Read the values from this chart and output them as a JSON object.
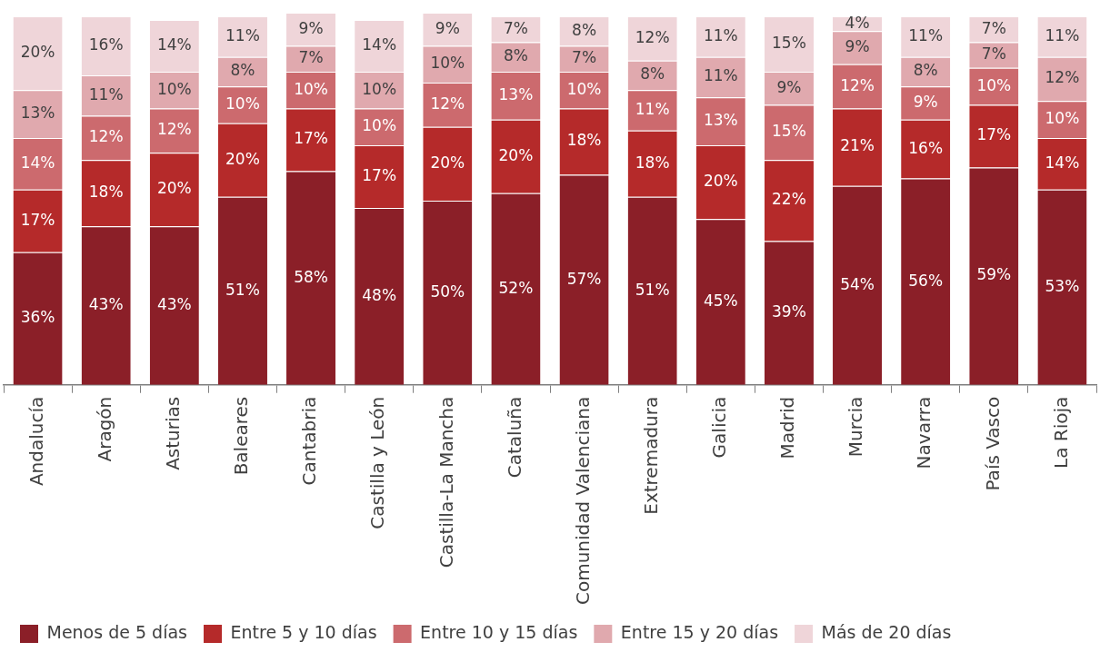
{
  "chart_data": {
    "type": "bar",
    "stacked": true,
    "legend": "bottom",
    "grid": false,
    "categories": [
      "Andalucía",
      "Aragón",
      "Asturias",
      "Baleares",
      "Cantabria",
      "Castilla y León",
      "Castilla-La Mancha",
      "Cataluña",
      "Comunidad Valenciana",
      "Extremadura",
      "Galicia",
      "Madrid",
      "Murcia",
      "Navarra",
      "País Vasco",
      "La Rioja"
    ],
    "series": [
      {
        "name": "Menos de 5 días",
        "color": "#8b1f28",
        "values": [
          36,
          43,
          43,
          51,
          58,
          48,
          50,
          52,
          57,
          51,
          45,
          39,
          54,
          56,
          59,
          53
        ],
        "value_labels": [
          "36%",
          "43%",
          "43%",
          "51%",
          "58%",
          "48%",
          "50%",
          "52%",
          "57%",
          "51%",
          "45%",
          "39%",
          "54%",
          "56%",
          "59%",
          "53%"
        ]
      },
      {
        "name": "Entre 5 y 10 días",
        "color": "#b52a2a",
        "values": [
          17,
          18,
          20,
          20,
          17,
          17,
          20,
          20,
          18,
          18,
          20,
          22,
          21,
          16,
          17,
          14
        ],
        "value_labels": [
          "17%",
          "18%",
          "20%",
          "20%",
          "17%",
          "17%",
          "20%",
          "20%",
          "18%",
          "18%",
          "20%",
          "22%",
          "21%",
          "16%",
          "17%",
          "14%"
        ]
      },
      {
        "name": "Entre 10 y 15 días",
        "color": "#cc6a6e",
        "values": [
          14,
          12,
          12,
          10,
          10,
          10,
          12,
          13,
          10,
          11,
          13,
          15,
          12,
          9,
          10,
          10
        ],
        "value_labels": [
          "14%",
          "12%",
          "12%",
          "10%",
          "10%",
          "10%",
          "12%",
          "13%",
          "10%",
          "11%",
          "13%",
          "15%",
          "12%",
          "9%",
          "10%",
          "10%"
        ]
      },
      {
        "name": "Entre 15 y 20 días",
        "color": "#e0a9ae",
        "values": [
          13,
          11,
          10,
          8,
          7,
          10,
          10,
          8,
          7,
          8,
          11,
          9,
          9,
          8,
          7,
          12
        ],
        "value_labels": [
          "13%",
          "11%",
          "10%",
          "8%",
          "7%",
          "10%",
          "10%",
          "8%",
          "7%",
          "8%",
          "11%",
          "9%",
          "9%",
          "8%",
          "7%",
          "12%"
        ]
      },
      {
        "name": "Más de 20 días",
        "color": "#efd5d9",
        "values": [
          20,
          16,
          14,
          11,
          9,
          14,
          9,
          7,
          8,
          12,
          11,
          15,
          4,
          11,
          7,
          11
        ],
        "value_labels": [
          "20%",
          "16%",
          "14%",
          "11%",
          "9%",
          "14%",
          "9%",
          "7%",
          "8%",
          "12%",
          "11%",
          "15%",
          "4%",
          "11%",
          "7%",
          "11%"
        ]
      }
    ]
  }
}
